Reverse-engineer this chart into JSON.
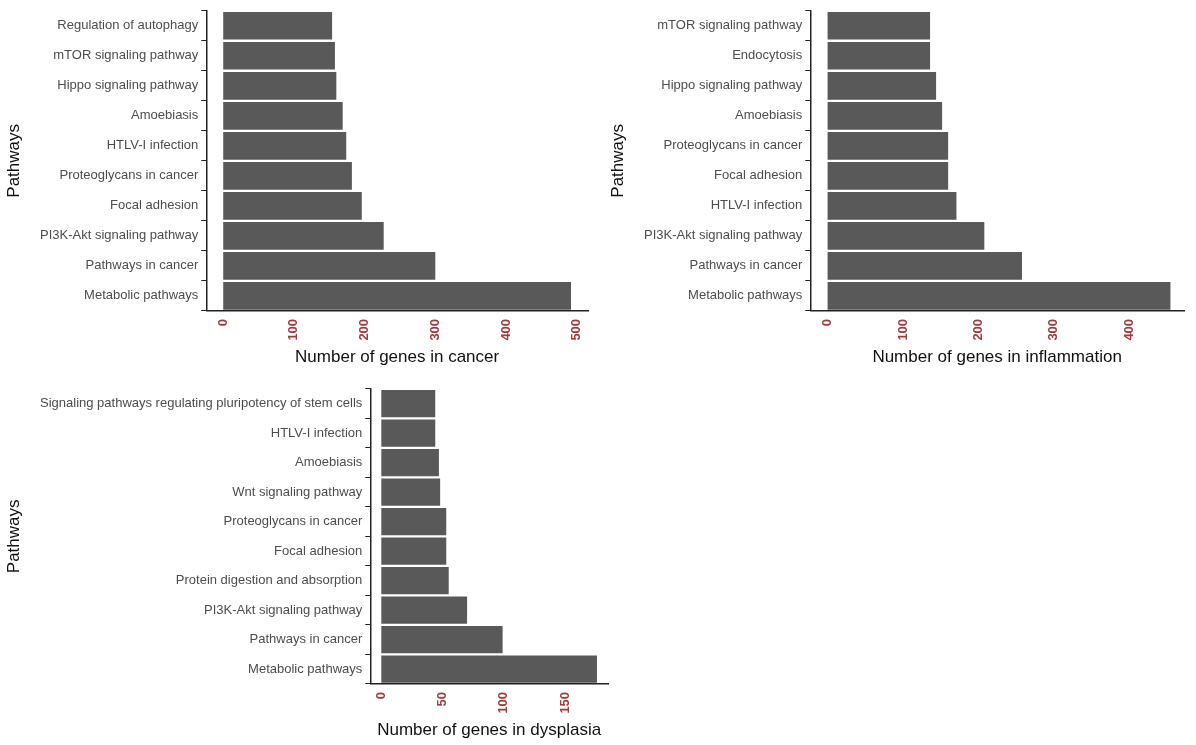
{
  "chart_data": [
    {
      "type": "bar",
      "orientation": "horizontal",
      "categories": [
        "Regulation of autophagy",
        "mTOR signaling pathway",
        "Hippo signaling pathway",
        "Amoebiasis",
        "HTLV-I infection",
        "Proteoglycans in cancer",
        "Focal adhesion",
        "PI3K-Akt signaling pathway",
        "Pathways in cancer",
        "Metabolic pathways"
      ],
      "values": [
        154,
        158,
        160,
        169,
        174,
        182,
        196,
        227,
        300,
        492
      ],
      "color": "#595959",
      "xlabel": "Number of genes in cancer",
      "ylabel": "Pathways",
      "xlim": [
        -24,
        516
      ],
      "xticks": [
        0,
        100,
        200,
        300,
        400,
        500
      ],
      "grid": false
    },
    {
      "type": "bar",
      "orientation": "horizontal",
      "categories": [
        "mTOR signaling pathway",
        "Endocytosis",
        "Hippo signaling pathway",
        "Amoebiasis",
        "Proteoglycans in cancer",
        "Focal adhesion",
        "HTLV-I infection",
        "PI3K-Akt signaling pathway",
        "Pathways in cancer",
        "Metabolic pathways"
      ],
      "values": [
        136,
        136,
        144,
        152,
        160,
        160,
        171,
        208,
        258,
        455
      ],
      "color": "#595959",
      "xlabel": "Number of genes in inflammation",
      "ylabel": "Pathways",
      "xlim": [
        -23,
        473
      ],
      "xticks": [
        0,
        100,
        200,
        300,
        400
      ],
      "grid": false
    },
    {
      "type": "bar",
      "orientation": "horizontal",
      "categories": [
        "Signaling pathways regulating pluripotency of stem cells",
        "HTLV-I infection",
        "Amoebiasis",
        "Wnt signaling pathway",
        "Proteoglycans in cancer",
        "Focal adhesion",
        "Protein digestion and absorption",
        "PI3K-Akt signaling pathway",
        "Pathways in cancer",
        "Metabolic pathways"
      ],
      "values": [
        44,
        44,
        47,
        48,
        53,
        53,
        55,
        70,
        99,
        176
      ],
      "color": "#595959",
      "xlabel": "Number of genes in dysplasia",
      "ylabel": "Pathways",
      "xlim": [
        -9,
        185
      ],
      "xticks": [
        0,
        50,
        100,
        150
      ],
      "grid": false
    }
  ]
}
